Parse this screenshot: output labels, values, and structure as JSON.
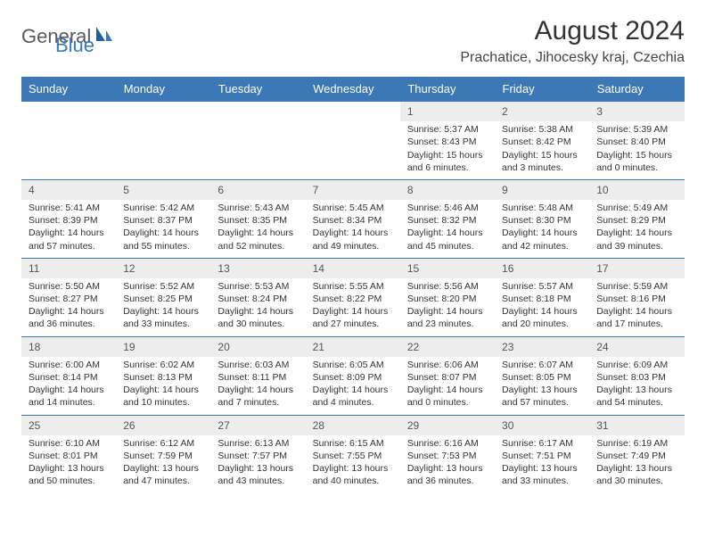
{
  "brand": {
    "part1": "General",
    "part2": "Blue"
  },
  "title": "August 2024",
  "location": "Prachatice, Jihocesky kraj, Czechia",
  "colors": {
    "header_bg": "#3b78b5",
    "header_text": "#ffffff",
    "daynum_bg": "#ededed",
    "border": "#3b78b5",
    "body_text": "#333333",
    "logo_gray": "#5a5a5a",
    "logo_blue": "#3b78b5"
  },
  "weekdays": [
    "Sunday",
    "Monday",
    "Tuesday",
    "Wednesday",
    "Thursday",
    "Friday",
    "Saturday"
  ],
  "weeks": [
    [
      null,
      null,
      null,
      null,
      {
        "day": "1",
        "sunrise": "Sunrise: 5:37 AM",
        "sunset": "Sunset: 8:43 PM",
        "daylight": "Daylight: 15 hours and 6 minutes."
      },
      {
        "day": "2",
        "sunrise": "Sunrise: 5:38 AM",
        "sunset": "Sunset: 8:42 PM",
        "daylight": "Daylight: 15 hours and 3 minutes."
      },
      {
        "day": "3",
        "sunrise": "Sunrise: 5:39 AM",
        "sunset": "Sunset: 8:40 PM",
        "daylight": "Daylight: 15 hours and 0 minutes."
      }
    ],
    [
      {
        "day": "4",
        "sunrise": "Sunrise: 5:41 AM",
        "sunset": "Sunset: 8:39 PM",
        "daylight": "Daylight: 14 hours and 57 minutes."
      },
      {
        "day": "5",
        "sunrise": "Sunrise: 5:42 AM",
        "sunset": "Sunset: 8:37 PM",
        "daylight": "Daylight: 14 hours and 55 minutes."
      },
      {
        "day": "6",
        "sunrise": "Sunrise: 5:43 AM",
        "sunset": "Sunset: 8:35 PM",
        "daylight": "Daylight: 14 hours and 52 minutes."
      },
      {
        "day": "7",
        "sunrise": "Sunrise: 5:45 AM",
        "sunset": "Sunset: 8:34 PM",
        "daylight": "Daylight: 14 hours and 49 minutes."
      },
      {
        "day": "8",
        "sunrise": "Sunrise: 5:46 AM",
        "sunset": "Sunset: 8:32 PM",
        "daylight": "Daylight: 14 hours and 45 minutes."
      },
      {
        "day": "9",
        "sunrise": "Sunrise: 5:48 AM",
        "sunset": "Sunset: 8:30 PM",
        "daylight": "Daylight: 14 hours and 42 minutes."
      },
      {
        "day": "10",
        "sunrise": "Sunrise: 5:49 AM",
        "sunset": "Sunset: 8:29 PM",
        "daylight": "Daylight: 14 hours and 39 minutes."
      }
    ],
    [
      {
        "day": "11",
        "sunrise": "Sunrise: 5:50 AM",
        "sunset": "Sunset: 8:27 PM",
        "daylight": "Daylight: 14 hours and 36 minutes."
      },
      {
        "day": "12",
        "sunrise": "Sunrise: 5:52 AM",
        "sunset": "Sunset: 8:25 PM",
        "daylight": "Daylight: 14 hours and 33 minutes."
      },
      {
        "day": "13",
        "sunrise": "Sunrise: 5:53 AM",
        "sunset": "Sunset: 8:24 PM",
        "daylight": "Daylight: 14 hours and 30 minutes."
      },
      {
        "day": "14",
        "sunrise": "Sunrise: 5:55 AM",
        "sunset": "Sunset: 8:22 PM",
        "daylight": "Daylight: 14 hours and 27 minutes."
      },
      {
        "day": "15",
        "sunrise": "Sunrise: 5:56 AM",
        "sunset": "Sunset: 8:20 PM",
        "daylight": "Daylight: 14 hours and 23 minutes."
      },
      {
        "day": "16",
        "sunrise": "Sunrise: 5:57 AM",
        "sunset": "Sunset: 8:18 PM",
        "daylight": "Daylight: 14 hours and 20 minutes."
      },
      {
        "day": "17",
        "sunrise": "Sunrise: 5:59 AM",
        "sunset": "Sunset: 8:16 PM",
        "daylight": "Daylight: 14 hours and 17 minutes."
      }
    ],
    [
      {
        "day": "18",
        "sunrise": "Sunrise: 6:00 AM",
        "sunset": "Sunset: 8:14 PM",
        "daylight": "Daylight: 14 hours and 14 minutes."
      },
      {
        "day": "19",
        "sunrise": "Sunrise: 6:02 AM",
        "sunset": "Sunset: 8:13 PM",
        "daylight": "Daylight: 14 hours and 10 minutes."
      },
      {
        "day": "20",
        "sunrise": "Sunrise: 6:03 AM",
        "sunset": "Sunset: 8:11 PM",
        "daylight": "Daylight: 14 hours and 7 minutes."
      },
      {
        "day": "21",
        "sunrise": "Sunrise: 6:05 AM",
        "sunset": "Sunset: 8:09 PM",
        "daylight": "Daylight: 14 hours and 4 minutes."
      },
      {
        "day": "22",
        "sunrise": "Sunrise: 6:06 AM",
        "sunset": "Sunset: 8:07 PM",
        "daylight": "Daylight: 14 hours and 0 minutes."
      },
      {
        "day": "23",
        "sunrise": "Sunrise: 6:07 AM",
        "sunset": "Sunset: 8:05 PM",
        "daylight": "Daylight: 13 hours and 57 minutes."
      },
      {
        "day": "24",
        "sunrise": "Sunrise: 6:09 AM",
        "sunset": "Sunset: 8:03 PM",
        "daylight": "Daylight: 13 hours and 54 minutes."
      }
    ],
    [
      {
        "day": "25",
        "sunrise": "Sunrise: 6:10 AM",
        "sunset": "Sunset: 8:01 PM",
        "daylight": "Daylight: 13 hours and 50 minutes."
      },
      {
        "day": "26",
        "sunrise": "Sunrise: 6:12 AM",
        "sunset": "Sunset: 7:59 PM",
        "daylight": "Daylight: 13 hours and 47 minutes."
      },
      {
        "day": "27",
        "sunrise": "Sunrise: 6:13 AM",
        "sunset": "Sunset: 7:57 PM",
        "daylight": "Daylight: 13 hours and 43 minutes."
      },
      {
        "day": "28",
        "sunrise": "Sunrise: 6:15 AM",
        "sunset": "Sunset: 7:55 PM",
        "daylight": "Daylight: 13 hours and 40 minutes."
      },
      {
        "day": "29",
        "sunrise": "Sunrise: 6:16 AM",
        "sunset": "Sunset: 7:53 PM",
        "daylight": "Daylight: 13 hours and 36 minutes."
      },
      {
        "day": "30",
        "sunrise": "Sunrise: 6:17 AM",
        "sunset": "Sunset: 7:51 PM",
        "daylight": "Daylight: 13 hours and 33 minutes."
      },
      {
        "day": "31",
        "sunrise": "Sunrise: 6:19 AM",
        "sunset": "Sunset: 7:49 PM",
        "daylight": "Daylight: 13 hours and 30 minutes."
      }
    ]
  ]
}
